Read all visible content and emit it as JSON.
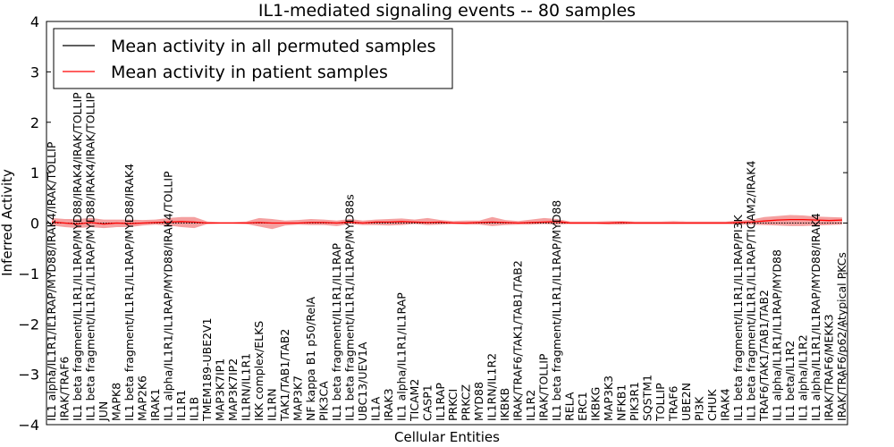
{
  "chart_data": {
    "type": "line",
    "title": "IL1-mediated signaling events -- 80 samples",
    "xlabel": "Cellular Entities",
    "ylabel": "Inferred Activity",
    "ylim": [
      -4,
      4
    ],
    "yticks": [
      -4,
      -3,
      -2,
      -1,
      0,
      1,
      2,
      3,
      4
    ],
    "legend_position": "top-left",
    "colors": {
      "permuted": "#000000",
      "patient": "#ff0000",
      "band": "#f08080"
    },
    "categories": [
      "IL1 alpha/IL1R1/IL1RAP/MYD88/IRAK4/IRAK/TOLLIP",
      "IRAK/TRAF6",
      "IL1 beta fragment/IL1R1/IL1RAP/MYD88/IRAK4/IRAK/TOLLIP",
      "IL1 beta fragment/IL1R1/IL1RAP/MYD88/IRAK4/IRAK/TOLLIP",
      "JUN",
      "MAPK8",
      "IL1 beta fragment/IL1R1/IL1RAP/MYD88/IRAK4",
      "MAP2K6",
      "IRAK1",
      "IL1 alpha/IL1R1/IL1RAP/MYD88/IRAK4/TOLLIP",
      "IL1R1",
      "IL1B",
      "TMEM189-UBE2V1",
      "MAP3K7IP1",
      "MAP3K7IP2",
      "IL1RN/IL1R1",
      "IKK complex/ELKS",
      "IL1RN",
      "TAK1/TAB1/TAB2",
      "MAP3K7",
      "NF kappa B1 p50/RelA",
      "PIK3CA",
      "IL1 beta fragment/IL1R1/IL1RAP",
      "IL1 beta fragment/IL1R1/IL1RAP/MYD88s",
      "UBC13/UEV1A",
      "IL1A",
      "IRAK3",
      "IL1 alpha/IL1R1/IL1RAP",
      "TICAM2",
      "CASP1",
      "IL1RAP",
      "PRKCI",
      "PRKCZ",
      "MYD88",
      "IL1RN/IL1R2",
      "IKBKB",
      "IRAK/TRAF6/TAK1/TAB1/TAB2",
      "IL1R2",
      "IRAK/TOLLIP",
      "IL1 beta fragment/IL1R1/IL1RAP/MYD88",
      "RELA",
      "ERC1",
      "IKBKG",
      "MAP3K3",
      "NFKB1",
      "PIK3R1",
      "SQSTM1",
      "TOLLIP",
      "TRAF6",
      "UBE2N",
      "PI3K",
      "CHUK",
      "IRAK4",
      "IL1 beta fragment/IL1R1/IL1RAP/PI3K",
      "IL1 beta fragment/IL1R1/IL1RAP/TICAM2/IRAK4",
      "TRAF6/TAK1/TAB1/TAB2",
      "IL1 alpha/IL1R1/IL1RAP/MYD88",
      "IL1 beta/IL1R2",
      "IL1 alpha/IL1R2",
      "IL1 alpha/IL1R1/IL1RAP/MYD88/IRAK4",
      "IRAK/TRAF6/MEKK3",
      "IRAK/TRAF6/p62/Atypical PKCs"
    ],
    "series": [
      {
        "name": "Mean activity in all permuted samples",
        "values": [
          0,
          0,
          0,
          0,
          0,
          0,
          0,
          0,
          0,
          0,
          0,
          0,
          0,
          0,
          0,
          0,
          0,
          0,
          0,
          0,
          0,
          0,
          0,
          0,
          0,
          0,
          0,
          0,
          0,
          0,
          0,
          0,
          0,
          0,
          0,
          0,
          0,
          0,
          0,
          0,
          0,
          0,
          0,
          0,
          0,
          0,
          0,
          0,
          0,
          0,
          0,
          0,
          0,
          0,
          0,
          0,
          0,
          0,
          0,
          0,
          0,
          0
        ]
      },
      {
        "name": "Mean activity in patient samples",
        "values": [
          0.02,
          0.0,
          -0.02,
          0.01,
          -0.02,
          0.0,
          -0.01,
          0.0,
          0.01,
          0.02,
          0.03,
          0.02,
          0.0,
          0.0,
          0.0,
          0.0,
          0.01,
          0.0,
          0.0,
          0.0,
          0.01,
          0.01,
          0.0,
          0.02,
          0.0,
          0.02,
          0.02,
          0.03,
          0.02,
          0.01,
          0.02,
          0.0,
          0.0,
          0.01,
          0.02,
          0.01,
          0.0,
          0.01,
          0.02,
          0.03,
          0.0,
          0.0,
          0.0,
          0.0,
          0.01,
          0.0,
          0.0,
          0.0,
          0.0,
          0.0,
          0.0,
          0.0,
          0.0,
          0.01,
          0.02,
          0.04,
          0.06,
          0.07,
          0.07,
          0.06,
          0.05,
          0.06
        ]
      }
    ],
    "band": {
      "name": "patient activity spread",
      "lower": [
        -0.05,
        -0.08,
        -0.1,
        -0.08,
        -0.1,
        -0.08,
        -0.08,
        -0.05,
        -0.03,
        -0.05,
        -0.08,
        -0.1,
        -0.02,
        -0.01,
        -0.01,
        -0.02,
        -0.07,
        -0.12,
        -0.05,
        -0.03,
        -0.04,
        -0.04,
        -0.06,
        -0.02,
        -0.04,
        -0.04,
        -0.05,
        -0.04,
        -0.02,
        -0.04,
        -0.03,
        -0.02,
        -0.03,
        -0.03,
        -0.06,
        -0.04,
        -0.03,
        -0.03,
        -0.02,
        -0.03,
        -0.02,
        -0.02,
        -0.02,
        -0.03,
        -0.03,
        -0.02,
        -0.02,
        -0.02,
        -0.02,
        -0.02,
        -0.02,
        -0.02,
        -0.02,
        -0.03,
        -0.03,
        -0.04,
        -0.05,
        -0.06,
        -0.06,
        -0.05,
        -0.04,
        -0.03
      ],
      "upper": [
        0.1,
        0.08,
        0.08,
        0.1,
        0.07,
        0.07,
        0.07,
        0.06,
        0.07,
        0.1,
        0.12,
        0.12,
        0.03,
        0.02,
        0.02,
        0.03,
        0.1,
        0.08,
        0.05,
        0.06,
        0.08,
        0.07,
        0.05,
        0.08,
        0.05,
        0.07,
        0.08,
        0.09,
        0.07,
        0.1,
        0.06,
        0.04,
        0.05,
        0.05,
        0.12,
        0.06,
        0.04,
        0.07,
        0.1,
        0.08,
        0.03,
        0.03,
        0.03,
        0.04,
        0.04,
        0.03,
        0.03,
        0.03,
        0.04,
        0.03,
        0.03,
        0.03,
        0.03,
        0.05,
        0.07,
        0.12,
        0.14,
        0.16,
        0.15,
        0.13,
        0.12,
        0.11
      ]
    }
  }
}
